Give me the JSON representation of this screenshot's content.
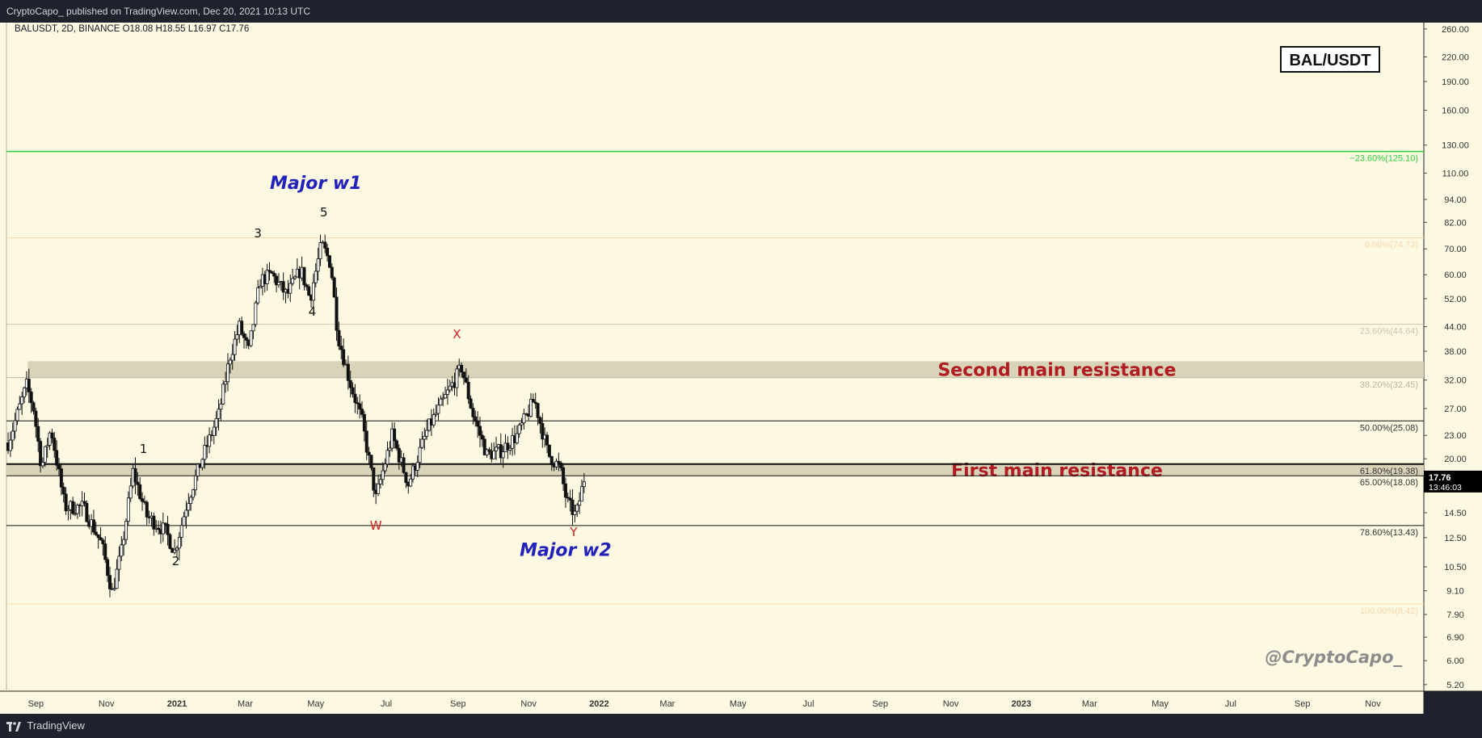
{
  "header": {
    "published": "CryptoCapo_ published on TradingView.com, Dec 20, 2021 10:13 UTC"
  },
  "footer": {
    "brand": "TradingView"
  },
  "chart_data": {
    "type": "candlestick",
    "symbol_line": "BALUSDT, 2D, BINANCE  O18.08  H18.55  L16.97  C17.76",
    "badge": "BAL/USDT",
    "watermark": "@CryptoCapo_",
    "price_scale": "log",
    "ylim": [
      5.0,
      270.0
    ],
    "y_ticks": [
      "260.00",
      "220.00",
      "190.00",
      "160.00",
      "130.00",
      "110.00",
      "94.00",
      "82.00",
      "70.00",
      "60.00",
      "52.00",
      "44.00",
      "38.00",
      "32.00",
      "27.00",
      "23.00",
      "20.00",
      "14.50",
      "12.50",
      "10.50",
      "9.10",
      "7.90",
      "6.90",
      "6.00",
      "5.20"
    ],
    "x_ticks": [
      "Sep",
      "Nov",
      "2021",
      "Mar",
      "May",
      "Jul",
      "Sep",
      "Nov",
      "2022",
      "Mar",
      "May",
      "Jul",
      "Sep",
      "Nov",
      "2023",
      "Mar",
      "May",
      "Jul",
      "Sep",
      "Nov"
    ],
    "x_start": "2020-08-01",
    "x_end": "2023-12-15",
    "current_price": {
      "value": 17.76,
      "label": "17.76",
      "countdown": "13:46:03"
    },
    "fib_levels": [
      {
        "label": "−23.60%(125.10)",
        "price": 125.1,
        "color": "#2ecc40",
        "bold": true
      },
      {
        "label": "0.00%(74.73)",
        "price": 74.73,
        "color": "#f5d9b0",
        "bold": false
      },
      {
        "label": "23.60%(44.64)",
        "price": 44.64,
        "color": "#c9c5b5",
        "bold": false
      },
      {
        "label": "38.20%(32.45)",
        "price": 32.45,
        "color": "#b9b6a6",
        "bold": false
      },
      {
        "label": "50.00%(25.08)",
        "price": 25.08,
        "color": "#111111",
        "bold": false
      },
      {
        "label": "61.80%(19.38)",
        "price": 19.38,
        "color": "#111111",
        "bold": false
      },
      {
        "label": "65.00%(18.08)",
        "price": 18.08,
        "color": "#111111",
        "bold": false
      },
      {
        "label": "78.60%(13.43)",
        "price": 13.43,
        "color": "#111111",
        "bold": false
      },
      {
        "label": "100.00%(8.42)",
        "price": 8.42,
        "color": "#f5d9b0",
        "bold": false
      }
    ],
    "zones": [
      {
        "label": "Second main resistance",
        "low": 32.45,
        "high": 35.8,
        "start": "2020-08-25"
      },
      {
        "label": "First main resistance",
        "low": 18.08,
        "high": 19.38,
        "start": "2020-07-25"
      }
    ],
    "wave_labels": [
      {
        "text": "Major w1",
        "date": "2021-05-01",
        "price": 100,
        "color": "#2222bb",
        "style": "major"
      },
      {
        "text": "5",
        "date": "2021-05-08",
        "price": 85,
        "color": "#111111",
        "style": "minor"
      },
      {
        "text": "3",
        "date": "2021-03-12",
        "price": 75,
        "color": "#111111",
        "style": "minor"
      },
      {
        "text": "4",
        "date": "2021-04-28",
        "price": 47,
        "color": "#111111",
        "style": "minor"
      },
      {
        "text": "1",
        "date": "2020-12-03",
        "price": 20.7,
        "color": "#111111",
        "style": "minor"
      },
      {
        "text": "2",
        "date": "2020-12-31",
        "price": 10.6,
        "color": "#111111",
        "style": "minor"
      },
      {
        "text": "X",
        "date": "2021-08-31",
        "price": 41,
        "color": "#cc2222",
        "style": "minor"
      },
      {
        "text": "W",
        "date": "2021-06-22",
        "price": 13.1,
        "color": "#cc2222",
        "style": "minor"
      },
      {
        "text": "Y",
        "date": "2021-12-10",
        "price": 12.6,
        "color": "#cc2222",
        "style": "minor"
      },
      {
        "text": "Major w2",
        "date": "2021-12-03",
        "price": 11.2,
        "color": "#2222bb",
        "style": "major"
      }
    ],
    "anchors": [
      [
        "2020-08-08",
        22
      ],
      [
        "2020-08-24",
        31
      ],
      [
        "2020-08-30",
        27
      ],
      [
        "2020-09-06",
        19
      ],
      [
        "2020-09-14",
        24
      ],
      [
        "2020-09-26",
        15
      ],
      [
        "2020-10-12",
        15
      ],
      [
        "2020-10-28",
        12
      ],
      [
        "2020-11-06",
        9.0
      ],
      [
        "2020-11-14",
        11.5
      ],
      [
        "2020-11-24",
        18.5
      ],
      [
        "2020-12-06",
        14.2
      ],
      [
        "2020-12-22",
        13.0
      ],
      [
        "2020-12-30",
        11.5
      ],
      [
        "2021-01-10",
        15.5
      ],
      [
        "2021-01-24",
        20.5
      ],
      [
        "2021-02-06",
        26
      ],
      [
        "2021-02-16",
        37
      ],
      [
        "2021-02-24",
        44
      ],
      [
        "2021-03-04",
        38
      ],
      [
        "2021-03-14",
        58
      ],
      [
        "2021-03-24",
        60
      ],
      [
        "2021-04-06",
        53
      ],
      [
        "2021-04-18",
        62
      ],
      [
        "2021-04-26",
        52
      ],
      [
        "2021-05-06",
        72
      ],
      [
        "2021-05-14",
        64
      ],
      [
        "2021-05-20",
        42
      ],
      [
        "2021-05-30",
        32
      ],
      [
        "2021-06-10",
        25
      ],
      [
        "2021-06-22",
        15.8
      ],
      [
        "2021-07-06",
        23
      ],
      [
        "2021-07-20",
        17.2
      ],
      [
        "2021-08-06",
        24
      ],
      [
        "2021-08-20",
        28.5
      ],
      [
        "2021-09-04",
        34.5
      ],
      [
        "2021-09-14",
        26
      ],
      [
        "2021-09-26",
        20.5
      ],
      [
        "2021-10-08",
        21
      ],
      [
        "2021-10-22",
        23
      ],
      [
        "2021-11-06",
        28.5
      ],
      [
        "2021-11-18",
        20.5
      ],
      [
        "2021-11-28",
        19
      ],
      [
        "2021-12-04",
        15.5
      ],
      [
        "2021-12-12",
        14.2
      ],
      [
        "2021-12-19",
        17.76
      ]
    ]
  }
}
